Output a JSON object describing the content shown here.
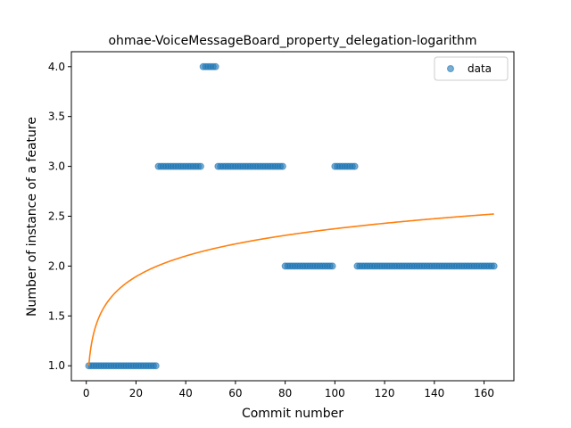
{
  "chart_data": {
    "type": "scatter",
    "title": "ohmae-VoiceMessageBoard_property_delegation-logarithm",
    "xlabel": "Commit number",
    "ylabel": "Number of instance of a feature",
    "xlim": [
      -6,
      172
    ],
    "ylim": [
      0.85,
      4.15
    ],
    "xticks": [
      0,
      20,
      40,
      60,
      80,
      100,
      120,
      140,
      160
    ],
    "yticks": [
      1.0,
      1.5,
      2.0,
      2.5,
      3.0,
      3.5,
      4.0
    ],
    "xtick_labels": [
      "0",
      "20",
      "40",
      "60",
      "80",
      "100",
      "120",
      "140",
      "160"
    ],
    "ytick_labels": [
      "1.0",
      "1.5",
      "2.0",
      "2.5",
      "3.0",
      "3.5",
      "4.0"
    ],
    "grid": false,
    "legend": {
      "position": "top-right",
      "entries": [
        "data"
      ]
    },
    "series": [
      {
        "name": "data",
        "kind": "scatter",
        "color": "#1f77b4",
        "segments": [
          {
            "x_start": 1,
            "x_end": 28,
            "y": 1
          },
          {
            "x_start": 29,
            "x_end": 46,
            "y": 3
          },
          {
            "x_start": 47,
            "x_end": 52,
            "y": 4
          },
          {
            "x_start": 53,
            "x_end": 79,
            "y": 3
          },
          {
            "x_start": 80,
            "x_end": 99,
            "y": 2
          },
          {
            "x_start": 100,
            "x_end": 108,
            "y": 3
          },
          {
            "x_start": 109,
            "x_end": 164,
            "y": 2
          }
        ]
      },
      {
        "name": "",
        "kind": "line",
        "color": "#ff7f0e",
        "model": "a + b*ln(x)",
        "a": 1.0,
        "b": 0.2985,
        "x_range": [
          1,
          164
        ]
      }
    ]
  }
}
